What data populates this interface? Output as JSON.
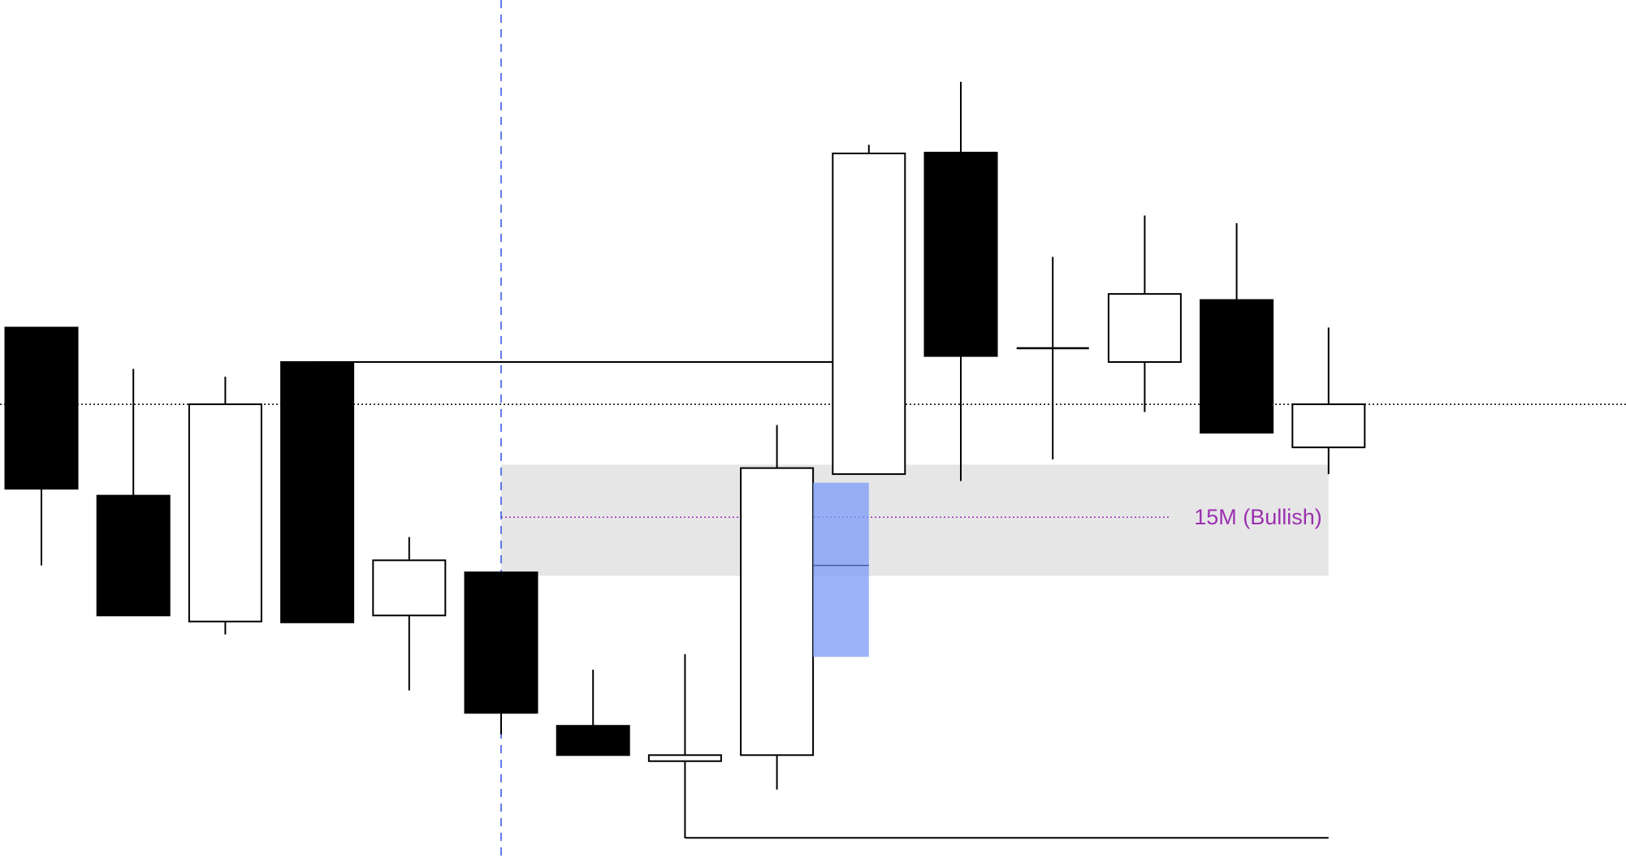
{
  "chart_data": {
    "type": "candlestick",
    "title": "",
    "xlabel": "",
    "ylabel": "",
    "ylim": [
      0,
      100
    ],
    "grid": false,
    "colors": {
      "up_fill": "#ffffff",
      "down_fill": "#000000",
      "outline": "#000000",
      "zone_fill": "#e6e6e6",
      "zone_label": "#9b30b0",
      "marker_line": "#3b5ce6",
      "fvg_fill": "#7f9ff7"
    },
    "candles": [
      {
        "o": 62.0,
        "h": 62.0,
        "l": 34.4,
        "c": 43.3
      },
      {
        "o": 42.5,
        "h": 57.2,
        "l": 28.6,
        "c": 28.6
      },
      {
        "o": 27.9,
        "h": 56.3,
        "l": 26.4,
        "c": 53.1
      },
      {
        "o": 58.0,
        "h": 58.0,
        "l": 27.8,
        "c": 27.8
      },
      {
        "o": 28.6,
        "h": 37.7,
        "l": 19.9,
        "c": 35.0
      },
      {
        "o": 33.6,
        "h": 33.6,
        "l": 14.8,
        "c": 17.3
      },
      {
        "o": 15.8,
        "h": 22.3,
        "l": 12.4,
        "c": 12.4
      },
      {
        "o": 11.7,
        "h": 24.1,
        "l": 2.8,
        "c": 12.4
      },
      {
        "o": 12.4,
        "h": 50.7,
        "l": 8.4,
        "c": 45.7
      },
      {
        "o": 45.0,
        "h": 83.2,
        "l": 45.0,
        "c": 82.2
      },
      {
        "o": 82.3,
        "h": 90.5,
        "l": 44.2,
        "c": 58.7
      },
      {
        "o": 59.6,
        "h": 70.2,
        "l": 46.7,
        "c": 59.6
      },
      {
        "o": 58.0,
        "h": 75.0,
        "l": 52.2,
        "c": 65.9
      },
      {
        "o": 65.2,
        "h": 74.1,
        "l": 49.8,
        "c": 49.8
      },
      {
        "o": 48.1,
        "h": 62.0,
        "l": 45.0,
        "c": 53.1
      }
    ],
    "levels": [
      {
        "kind": "solid",
        "value": 58.0,
        "from_candle": 4,
        "to_candle": 10
      },
      {
        "kind": "solid",
        "value": 2.8,
        "from_candle": 8,
        "to_candle": 15
      },
      {
        "kind": "dotted",
        "value": 53.1,
        "full_width": true
      }
    ],
    "vertical_marker": {
      "candle": 6,
      "style": "dashed"
    },
    "zone": {
      "label": "15M (Bullish)",
      "top": 46.1,
      "bottom": 33.2,
      "mid": 40.0,
      "from_candle": 6,
      "to_candle": 15
    },
    "fvg_box": {
      "top": 44.0,
      "bottom": 23.8,
      "mid": 34.4,
      "after_candle": 9
    }
  }
}
